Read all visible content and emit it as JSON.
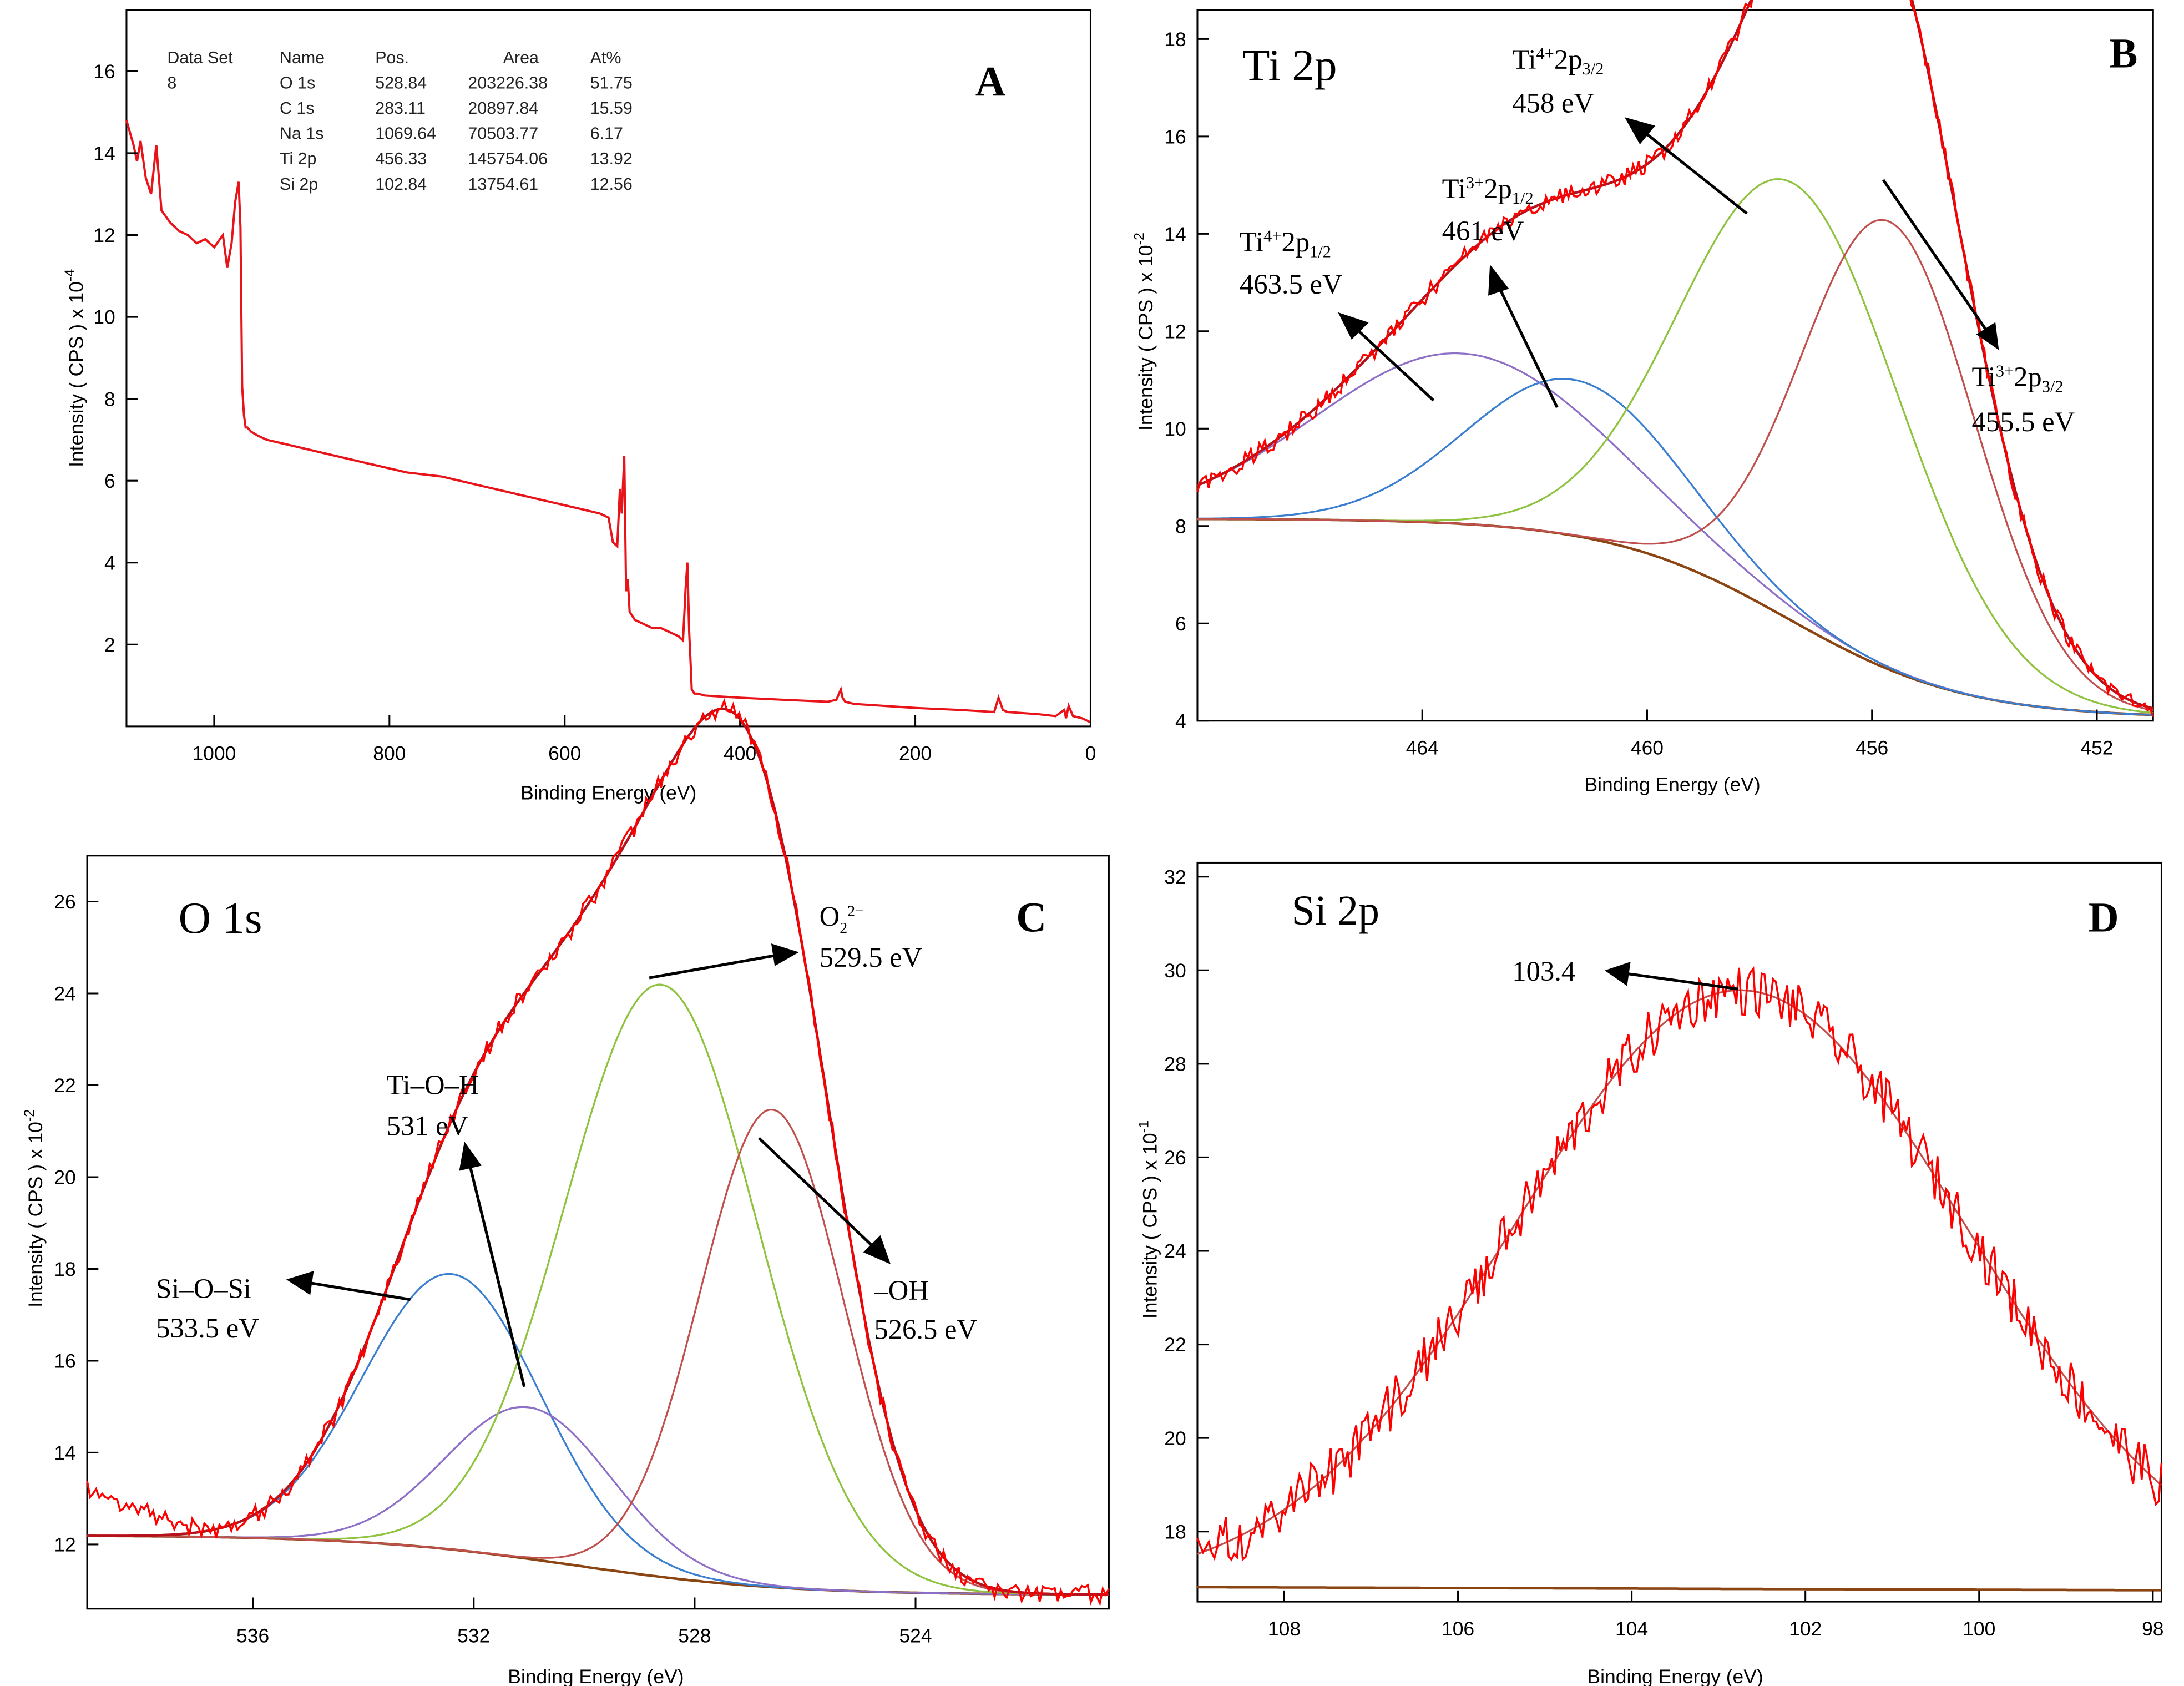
{
  "chart_data": [
    {
      "panel": "A",
      "type": "line",
      "title": "",
      "xlabel": "Binding Energy (eV)",
      "ylabel": "Intensity ( CPS ) x 10",
      "ylabel_exp": "-4",
      "xlim": [
        1100,
        0
      ],
      "ylim": [
        0,
        17.5
      ],
      "xticks": [
        1000,
        800,
        600,
        400,
        200,
        0
      ],
      "yticks": [
        2,
        4,
        6,
        8,
        10,
        12,
        14,
        16
      ],
      "table": {
        "headers": [
          "Data Set",
          "Name",
          "Pos.",
          "Area",
          "At%"
        ],
        "dataset": "8",
        "rows": [
          [
            "O 1s",
            "528.84",
            "203226.38",
            "51.75"
          ],
          [
            "C 1s",
            "283.11",
            "20897.84",
            "15.59"
          ],
          [
            "Na 1s",
            "1069.64",
            "70503.77",
            "6.17"
          ],
          [
            "Ti 2p",
            "456.33",
            "145754.06",
            "13.92"
          ],
          [
            "Si 2p",
            "102.84",
            "13754.61",
            "12.56"
          ]
        ]
      },
      "series": [
        {
          "name": "survey",
          "color": "#e8141a",
          "x": [
            1100,
            1092,
            1088,
            1084,
            1078,
            1072,
            1066,
            1060,
            1050,
            1040,
            1030,
            1020,
            1010,
            1000,
            990,
            985,
            980,
            976,
            972,
            970,
            968,
            966,
            964,
            962,
            958,
            950,
            940,
            900,
            860,
            820,
            780,
            740,
            700,
            660,
            620,
            580,
            560,
            550,
            545,
            540,
            537,
            535,
            532,
            530,
            528,
            526,
            520,
            510,
            500,
            490,
            480,
            470,
            465,
            462,
            460,
            458,
            456,
            455,
            452,
            448,
            440,
            400,
            350,
            300,
            290,
            285,
            283,
            280,
            270,
            200,
            150,
            110,
            105,
            100,
            95,
            60,
            40,
            30,
            28,
            25,
            20,
            10,
            0
          ],
          "y": [
            14.8,
            14.2,
            13.8,
            14.3,
            13.4,
            13.0,
            14.2,
            12.6,
            12.3,
            12.1,
            12.0,
            11.8,
            11.9,
            11.7,
            12.0,
            11.2,
            11.8,
            12.8,
            13.3,
            12.2,
            8.3,
            7.6,
            7.3,
            7.3,
            7.2,
            7.1,
            7.0,
            6.8,
            6.6,
            6.4,
            6.2,
            6.1,
            5.9,
            5.7,
            5.5,
            5.3,
            5.2,
            5.1,
            4.5,
            4.4,
            5.8,
            5.2,
            6.6,
            3.3,
            3.6,
            2.8,
            2.6,
            2.5,
            2.4,
            2.4,
            2.3,
            2.2,
            2.1,
            3.4,
            4.0,
            2.3,
            1.4,
            0.9,
            0.8,
            0.8,
            0.75,
            0.7,
            0.65,
            0.6,
            0.65,
            0.9,
            0.7,
            0.6,
            0.55,
            0.45,
            0.4,
            0.35,
            0.7,
            0.4,
            0.35,
            0.3,
            0.25,
            0.4,
            0.2,
            0.5,
            0.25,
            0.2,
            0.1
          ]
        }
      ]
    },
    {
      "panel": "B",
      "type": "line",
      "title": "Ti 2p",
      "xlabel": "Binding Energy (eV)",
      "ylabel": "Intensity ( CPS ) x 10",
      "ylabel_exp": "-2",
      "xlim": [
        468,
        451
      ],
      "ylim": [
        4,
        18.6
      ],
      "xticks": [
        464,
        460,
        456,
        452
      ],
      "yticks": [
        4,
        6,
        8,
        10,
        12,
        14,
        16,
        18
      ],
      "series": [
        {
          "name": "Background",
          "color": "#8b4513",
          "kind": "background",
          "params": {
            "high": 8.15,
            "low": 4.05,
            "center": 457.5,
            "width": 1.6
          }
        },
        {
          "name": "Ti4+ 2p1/2",
          "color": "#8d6fc7",
          "kind": "peak",
          "params": {
            "center": 463.3,
            "height": 3.5,
            "width": 2.6
          }
        },
        {
          "name": "Ti3+ 2p1/2",
          "color": "#3a7fcf",
          "kind": "peak",
          "params": {
            "center": 461.3,
            "height": 3.2,
            "width": 1.9
          }
        },
        {
          "name": "Ti4+ 2p3/2",
          "color": "#8fc23f",
          "kind": "peak",
          "params": {
            "center": 457.4,
            "height": 9.0,
            "width": 1.95
          }
        },
        {
          "name": "Ti3+ 2p3/2",
          "color": "#c0504d",
          "kind": "peak",
          "params": {
            "center": 455.7,
            "height": 9.2,
            "width": 1.55
          }
        },
        {
          "name": "Envelope",
          "color": "#b5121b",
          "kind": "envelope"
        },
        {
          "name": "Raw data",
          "color": "#ff0000",
          "kind": "raw",
          "noise": 0.18
        }
      ],
      "annotations": [
        {
          "ion": "Ti",
          "charge": "4+",
          "orbital": "2p",
          "sub": "1/2",
          "energy": "463.5 eV"
        },
        {
          "ion": "Ti",
          "charge": "3+",
          "orbital": "2p",
          "sub": "1/2",
          "energy": "461 eV"
        },
        {
          "ion": "Ti",
          "charge": "4+",
          "orbital": "2p",
          "sub": "3/2",
          "energy": "458 eV"
        },
        {
          "ion": "Ti",
          "charge": "3+",
          "orbital": "2p",
          "sub": "3/2",
          "energy": "455.5 eV"
        }
      ]
    },
    {
      "panel": "C",
      "type": "line",
      "title": "O 1s",
      "xlabel": "Binding Energy (eV)",
      "ylabel": "Intensity ( CPS ) x 10",
      "ylabel_exp": "-2",
      "xlim": [
        539,
        520.5
      ],
      "ylim": [
        10.6,
        27
      ],
      "xticks": [
        536,
        532,
        528,
        524
      ],
      "yticks": [
        12,
        14,
        16,
        18,
        20,
        22,
        24,
        26
      ],
      "series": [
        {
          "name": "Background",
          "color": "#8b4513",
          "kind": "background",
          "params": {
            "high": 12.2,
            "low": 10.9,
            "center": 530.2,
            "width": 1.9
          }
        },
        {
          "name": "Si-O-Si",
          "color": "#3a7fcf",
          "kind": "peak",
          "params": {
            "center": 532.4,
            "height": 6.0,
            "width": 1.6
          }
        },
        {
          "name": "Ti-O-H",
          "color": "#8d6fc7",
          "kind": "peak",
          "params": {
            "center": 531.0,
            "height": 3.3,
            "width": 1.5
          }
        },
        {
          "name": "O2 2-",
          "color": "#8fc23f",
          "kind": "peak",
          "params": {
            "center": 528.6,
            "height": 12.9,
            "width": 1.75
          }
        },
        {
          "name": "-OH",
          "color": "#c0504d",
          "kind": "peak",
          "params": {
            "center": 526.6,
            "height": 10.4,
            "width": 1.3
          }
        },
        {
          "name": "Envelope",
          "color": "#b5121b",
          "kind": "envelope"
        },
        {
          "name": "Raw data",
          "color": "#ff0000",
          "kind": "raw",
          "noise": 0.2,
          "tail_high": 13.2
        }
      ],
      "annotations": [
        {
          "label": "Si–O–Si",
          "energy": "533.5 eV"
        },
        {
          "label": "Ti–O–H",
          "energy": "531 eV"
        },
        {
          "label": "O",
          "sub": "2",
          "sup": "2−",
          "energy": "529.5 eV"
        },
        {
          "label": "–OH",
          "energy": "526.5 eV"
        }
      ]
    },
    {
      "panel": "D",
      "type": "line",
      "title": "Si 2p",
      "xlabel": "Binding Energy (eV)",
      "ylabel": "Intensity ( CPS ) x 10",
      "ylabel_exp": "-1",
      "xlim": [
        109,
        97.9
      ],
      "ylim": [
        16.5,
        32.3
      ],
      "xticks": [
        108,
        106,
        104,
        102,
        100,
        98
      ],
      "yticks": [
        18,
        20,
        22,
        24,
        26,
        28,
        30,
        32
      ],
      "series": [
        {
          "name": "Background",
          "color": "#8b4513",
          "kind": "background",
          "params": {
            "high": 16.85,
            "low": 16.7,
            "center": 103,
            "width": 6
          }
        },
        {
          "name": "Si 2p fit",
          "color": "#c0504d",
          "kind": "peak",
          "params": {
            "center": 102.75,
            "height": 12.8,
            "width": 2.6
          }
        },
        {
          "name": "Raw data",
          "color": "#ff0000",
          "kind": "raw",
          "noise": 0.55
        }
      ],
      "annotations": [
        {
          "label": "103.4"
        }
      ]
    }
  ],
  "panels": {
    "A": {
      "letter": "A"
    },
    "B": {
      "letter": "B"
    },
    "C": {
      "letter": "C"
    },
    "D": {
      "letter": "D"
    }
  }
}
